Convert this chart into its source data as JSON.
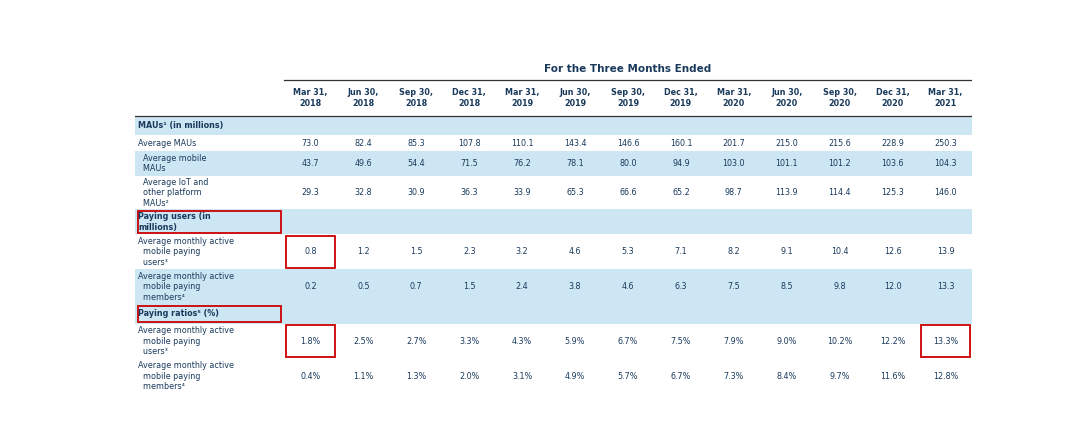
{
  "title": "For the Three Months Ended",
  "columns": [
    "Mar 31,\n2018",
    "Jun 30,\n2018",
    "Sep 30,\n2018",
    "Dec 31,\n2018",
    "Mar 31,\n2019",
    "Jun 30,\n2019",
    "Sep 30,\n2019",
    "Dec 31,\n2019",
    "Mar 31,\n2020",
    "Jun 30,\n2020",
    "Sep 30,\n2020",
    "Dec 31,\n2020",
    "Mar 31,\n2021"
  ],
  "row_labels": [
    "MAUs¹ (in millions)",
    "Average MAUs",
    "  Average mobile\n  MAUs",
    "  Average IoT and\n  other platform\n  MAUs²",
    "Paying users (in\nmillions)",
    "Average monthly active\n  mobile paying\n  users³",
    "Average monthly active\n  mobile paying\n  members⁴",
    "Paying ratios⁵ (%)",
    "Average monthly active\n  mobile paying\n  users³",
    "Average monthly active\n  mobile paying\n  members⁴"
  ],
  "rows": [
    [
      null,
      null,
      null,
      null,
      null,
      null,
      null,
      null,
      null,
      null,
      null,
      null,
      null
    ],
    [
      "73.0",
      "82.4",
      "85.3",
      "107.8",
      "110.1",
      "143.4",
      "146.6",
      "160.1",
      "201.7",
      "215.0",
      "215.6",
      "228.9",
      "250.3"
    ],
    [
      "43.7",
      "49.6",
      "54.4",
      "71.5",
      "76.2",
      "78.1",
      "80.0",
      "94.9",
      "103.0",
      "101.1",
      "101.2",
      "103.6",
      "104.3"
    ],
    [
      "29.3",
      "32.8",
      "30.9",
      "36.3",
      "33.9",
      "65.3",
      "66.6",
      "65.2",
      "98.7",
      "113.9",
      "114.4",
      "125.3",
      "146.0"
    ],
    [
      null,
      null,
      null,
      null,
      null,
      null,
      null,
      null,
      null,
      null,
      null,
      null,
      null
    ],
    [
      "0.8",
      "1.2",
      "1.5",
      "2.3",
      "3.2",
      "4.6",
      "5.3",
      "7.1",
      "8.2",
      "9.1",
      "10.4",
      "12.6",
      "13.9"
    ],
    [
      "0.2",
      "0.5",
      "0.7",
      "1.5",
      "2.4",
      "3.8",
      "4.6",
      "6.3",
      "7.5",
      "8.5",
      "9.8",
      "12.0",
      "13.3"
    ],
    [
      null,
      null,
      null,
      null,
      null,
      null,
      null,
      null,
      null,
      null,
      null,
      null,
      null
    ],
    [
      "1.8%",
      "2.5%",
      "2.7%",
      "3.3%",
      "4.3%",
      "5.9%",
      "6.7%",
      "7.5%",
      "7.9%",
      "9.0%",
      "10.2%",
      "12.2%",
      "13.3%"
    ],
    [
      "0.4%",
      "1.1%",
      "1.3%",
      "2.0%",
      "3.1%",
      "4.9%",
      "5.7%",
      "6.7%",
      "7.3%",
      "8.4%",
      "9.7%",
      "11.6%",
      "12.8%"
    ]
  ],
  "row_bg_light": "#cce6f4",
  "row_bg_white": "#ffffff",
  "bold_rows": [
    0,
    4,
    7
  ],
  "text_color": "#1a3a5c",
  "line_color": "#333333",
  "box_color": "#cc0000"
}
